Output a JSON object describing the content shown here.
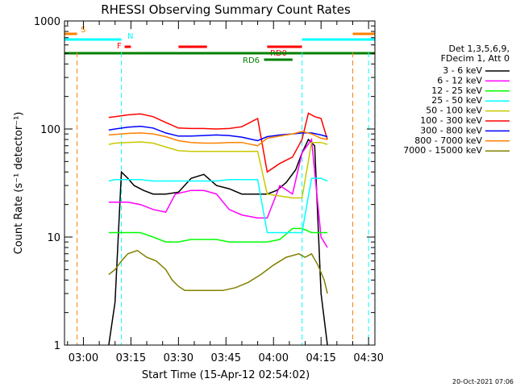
{
  "chart_data": {
    "type": "line",
    "title": "RHESSI Observing Summary Count Rates",
    "xlabel": "Start Time (15-Apr-12 02:54:02)",
    "ylabel": "Count Rate (s⁻¹ detector⁻¹)",
    "yscale": "log",
    "xlim": [
      "02:54:02",
      "04:32:00"
    ],
    "ylim": [
      1,
      1000
    ],
    "x_ticks": [
      "03:00",
      "03:15",
      "03:30",
      "03:45",
      "04:00",
      "04:15",
      "04:30"
    ],
    "y_ticks": [
      "1",
      "10",
      "100",
      "1000"
    ],
    "legend_title": [
      "Det 1,3,5,6,9,",
      "FDecim 1, Att 0"
    ],
    "legend_position": "right",
    "timestamp": "20-Oct-2021 07:06",
    "series": [
      {
        "name": "3 - 6 keV",
        "color": "#000000",
        "x": [
          "03:08",
          "03:10",
          "03:12",
          "03:14",
          "03:16",
          "03:19",
          "03:22",
          "03:26",
          "03:30",
          "03:34",
          "03:38",
          "03:42",
          "03:46",
          "03:50",
          "03:54",
          "03:56",
          "03:58",
          "04:01",
          "04:04",
          "04:07",
          "04:09",
          "04:11",
          "04:13",
          "04:15",
          "04:17"
        ],
        "y": [
          1,
          2.5,
          40,
          35,
          30,
          27,
          25,
          25,
          26,
          35,
          38,
          30,
          28,
          25,
          25,
          25,
          25,
          27,
          32,
          42,
          60,
          80,
          70,
          3,
          1
        ]
      },
      {
        "name": "6 - 12 keV",
        "color": "#ff00ff",
        "x": [
          "03:08",
          "03:10",
          "03:14",
          "03:18",
          "03:22",
          "03:26",
          "03:29",
          "03:34",
          "03:38",
          "03:42",
          "03:46",
          "03:50",
          "03:55",
          "03:58",
          "04:02",
          "04:06",
          "04:09",
          "04:12",
          "04:15",
          "04:17"
        ],
        "y": [
          21,
          21,
          21,
          20,
          18,
          17,
          25,
          27,
          27,
          25,
          18,
          16,
          15,
          15,
          30,
          25,
          60,
          80,
          10,
          8
        ]
      },
      {
        "name": "12 - 25 keV",
        "color": "#00ff00",
        "x": [
          "03:08",
          "03:10",
          "03:14",
          "03:18",
          "03:22",
          "03:26",
          "03:30",
          "03:34",
          "03:38",
          "03:42",
          "03:46",
          "03:50",
          "03:55",
          "03:58",
          "04:02",
          "04:06",
          "04:09",
          "04:12",
          "04:15",
          "04:17"
        ],
        "y": [
          11,
          11,
          11,
          11,
          10,
          9,
          9,
          9.5,
          9.5,
          9.5,
          9,
          9,
          9,
          9,
          9.5,
          12,
          12,
          11,
          11,
          11
        ]
      },
      {
        "name": "25 - 50 keV",
        "color": "#00ffff",
        "x": [
          "03:08",
          "03:10",
          "03:14",
          "03:18",
          "03:22",
          "03:26",
          "03:30",
          "03:34",
          "03:38",
          "03:42",
          "03:46",
          "03:50",
          "03:55",
          "03:58",
          "04:02",
          "04:06",
          "04:09",
          "04:12",
          "04:15",
          "04:17"
        ],
        "y": [
          33,
          34,
          34,
          34,
          33,
          33,
          33,
          33,
          33,
          33,
          34,
          34,
          34,
          11,
          11,
          11,
          11,
          35,
          35,
          33
        ]
      },
      {
        "name": "50 - 100 keV",
        "color": "#c8c800",
        "x": [
          "03:08",
          "03:10",
          "03:14",
          "03:18",
          "03:22",
          "03:26",
          "03:30",
          "03:34",
          "03:38",
          "03:42",
          "03:46",
          "03:50",
          "03:55",
          "03:58",
          "04:02",
          "04:06",
          "04:09",
          "04:12",
          "04:15",
          "04:17"
        ],
        "y": [
          72,
          74,
          75,
          76,
          74,
          68,
          63,
          62,
          62,
          62,
          62,
          62,
          62,
          25,
          24,
          23,
          23,
          75,
          75,
          72
        ]
      },
      {
        "name": "100 - 300 keV",
        "color": "#ff0000",
        "x": [
          "03:08",
          "03:10",
          "03:14",
          "03:18",
          "03:22",
          "03:26",
          "03:30",
          "03:34",
          "03:38",
          "03:42",
          "03:46",
          "03:50",
          "03:55",
          "03:58",
          "04:02",
          "04:06",
          "04:09",
          "04:11",
          "04:13",
          "04:15",
          "04:17"
        ],
        "y": [
          128,
          130,
          135,
          138,
          130,
          115,
          102,
          101,
          101,
          100,
          101,
          105,
          125,
          40,
          48,
          55,
          80,
          140,
          130,
          125,
          80
        ]
      },
      {
        "name": "300 - 800 keV",
        "color": "#0000ff",
        "x": [
          "03:08",
          "03:10",
          "03:14",
          "03:18",
          "03:22",
          "03:26",
          "03:30",
          "03:34",
          "03:38",
          "03:42",
          "03:46",
          "03:50",
          "03:55",
          "03:58",
          "04:02",
          "04:06",
          "04:09",
          "04:12",
          "04:15",
          "04:17"
        ],
        "y": [
          98,
          100,
          104,
          106,
          102,
          92,
          86,
          86,
          87,
          88,
          87,
          84,
          78,
          85,
          88,
          90,
          92,
          92,
          88,
          85
        ]
      },
      {
        "name": "800 - 7000 keV",
        "color": "#ff8000",
        "x": [
          "03:08",
          "03:10",
          "03:14",
          "03:18",
          "03:22",
          "03:26",
          "03:30",
          "03:34",
          "03:38",
          "03:42",
          "03:46",
          "03:50",
          "03:55",
          "03:58",
          "04:02",
          "04:06",
          "04:09",
          "04:12",
          "04:15",
          "04:17"
        ],
        "y": [
          88,
          89,
          91,
          92,
          90,
          85,
          78,
          75,
          74,
          74,
          75,
          75,
          70,
          82,
          86,
          90,
          95,
          90,
          82,
          80
        ]
      },
      {
        "name": "7000 - 15000 keV",
        "color": "#808000",
        "x": [
          "03:08",
          "03:10",
          "03:12",
          "03:14",
          "03:17",
          "03:20",
          "03:23",
          "03:26",
          "03:28",
          "03:30",
          "03:32",
          "03:36",
          "03:40",
          "03:44",
          "03:48",
          "03:52",
          "03:56",
          "04:00",
          "04:04",
          "04:08",
          "04:10",
          "04:12",
          "04:14",
          "04:16",
          "04:17"
        ],
        "y": [
          4.5,
          5,
          6,
          7,
          7.5,
          6.5,
          6,
          5,
          4,
          3.5,
          3.2,
          3.2,
          3.2,
          3.2,
          3.4,
          3.8,
          4.5,
          5.5,
          6.5,
          7,
          6.5,
          7,
          5.5,
          4,
          3
        ]
      }
    ],
    "vertical_markers": [
      {
        "time": "02:58",
        "color": "#ff8000"
      },
      {
        "time": "03:12",
        "color": "#00ffff"
      },
      {
        "time": "04:09",
        "color": "#00ffff"
      },
      {
        "time": "04:25",
        "color": "#ff8000"
      },
      {
        "time": "04:30",
        "color": "#00ffff"
      }
    ],
    "flag_bars": [
      {
        "label": "S",
        "color": "#ff8000",
        "segments": [
          [
            "02:54",
            "02:58"
          ],
          [
            "04:25",
            "04:32"
          ]
        ]
      },
      {
        "label": "N",
        "color": "#00ffff",
        "segments": [
          [
            "02:54",
            "03:12"
          ],
          [
            "04:09",
            "04:32"
          ]
        ]
      },
      {
        "label": "F",
        "color": "#ff0000",
        "segments": [
          [
            "03:13",
            "03:15"
          ],
          [
            "03:30",
            "03:39"
          ],
          [
            "03:58",
            "04:09"
          ]
        ]
      },
      {
        "label": "RD0",
        "color": "#ff0000",
        "segments": []
      },
      {
        "label": "",
        "color": "#008000",
        "segments": [
          [
            "02:54",
            "04:32"
          ]
        ]
      },
      {
        "label": "RD6",
        "color": "#008000",
        "segments": [
          [
            "03:57",
            "04:06"
          ]
        ]
      }
    ]
  }
}
